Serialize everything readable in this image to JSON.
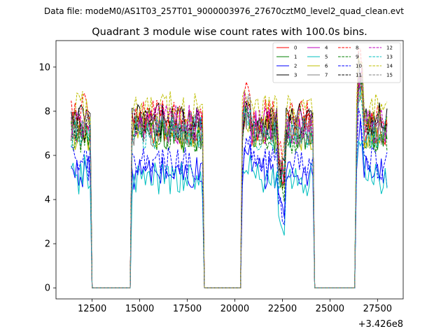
{
  "figure": {
    "suptitle": "Data file: modeM0/AS1T03_257T01_9000003976_27670cztM0_level2_quad_clean.evt",
    "offset_label": "+3.426e8"
  },
  "chart_data": {
    "type": "line",
    "title": "Quadrant 3 module wise count rates with 100.0s bins.",
    "xlabel": "",
    "ylabel": "",
    "x_offset": 342600000,
    "xlim": [
      10600,
      28850
    ],
    "ylim": [
      -0.5,
      11.2
    ],
    "xticks": [
      12500,
      15000,
      17500,
      20000,
      22500,
      25000,
      27500
    ],
    "yticks": [
      0,
      2,
      4,
      6,
      8,
      10
    ],
    "xtick_labels": [
      "12500",
      "15000",
      "17500",
      "20000",
      "22500",
      "25000",
      "27500"
    ],
    "ytick_labels": [
      "0",
      "2",
      "4",
      "6",
      "8",
      "10"
    ],
    "grid": false,
    "legend_position": "top-right",
    "segments": [
      {
        "start": 11400,
        "end": 12400
      },
      {
        "start": 14550,
        "end": 18300
      },
      {
        "start": 20400,
        "end": 24100
      },
      {
        "start": 26400,
        "end": 28000
      }
    ],
    "gap_value": 0,
    "series": [
      {
        "name": "0",
        "color": "#ff0000",
        "dash": "solid",
        "level": 7.2
      },
      {
        "name": "1",
        "color": "#008000",
        "dash": "solid",
        "level": 6.9
      },
      {
        "name": "2",
        "color": "#0000ff",
        "dash": "solid",
        "level": 5.2
      },
      {
        "name": "3",
        "color": "#000000",
        "dash": "solid",
        "level": 7.6
      },
      {
        "name": "4",
        "color": "#bf00bf",
        "dash": "solid",
        "level": 7.3
      },
      {
        "name": "5",
        "color": "#00bfbf",
        "dash": "solid",
        "level": 4.9
      },
      {
        "name": "6",
        "color": "#bfbf00",
        "dash": "solid",
        "level": 7.0
      },
      {
        "name": "7",
        "color": "#808080",
        "dash": "solid",
        "level": 7.1
      },
      {
        "name": "8",
        "color": "#ff0000",
        "dash": "dashed",
        "level": 7.8
      },
      {
        "name": "9",
        "color": "#008000",
        "dash": "dashed",
        "level": 6.8
      },
      {
        "name": "10",
        "color": "#0000ff",
        "dash": "dashed",
        "level": 5.6
      },
      {
        "name": "11",
        "color": "#000000",
        "dash": "dashed",
        "level": 7.4
      },
      {
        "name": "12",
        "color": "#bf00bf",
        "dash": "dashed",
        "level": 7.5
      },
      {
        "name": "13",
        "color": "#00bfbf",
        "dash": "dashed",
        "level": 7.0
      },
      {
        "name": "14",
        "color": "#bfbf00",
        "dash": "dashed",
        "level": 8.1
      },
      {
        "name": "15",
        "color": "#808080",
        "dash": "dashed",
        "level": 7.2
      }
    ]
  }
}
